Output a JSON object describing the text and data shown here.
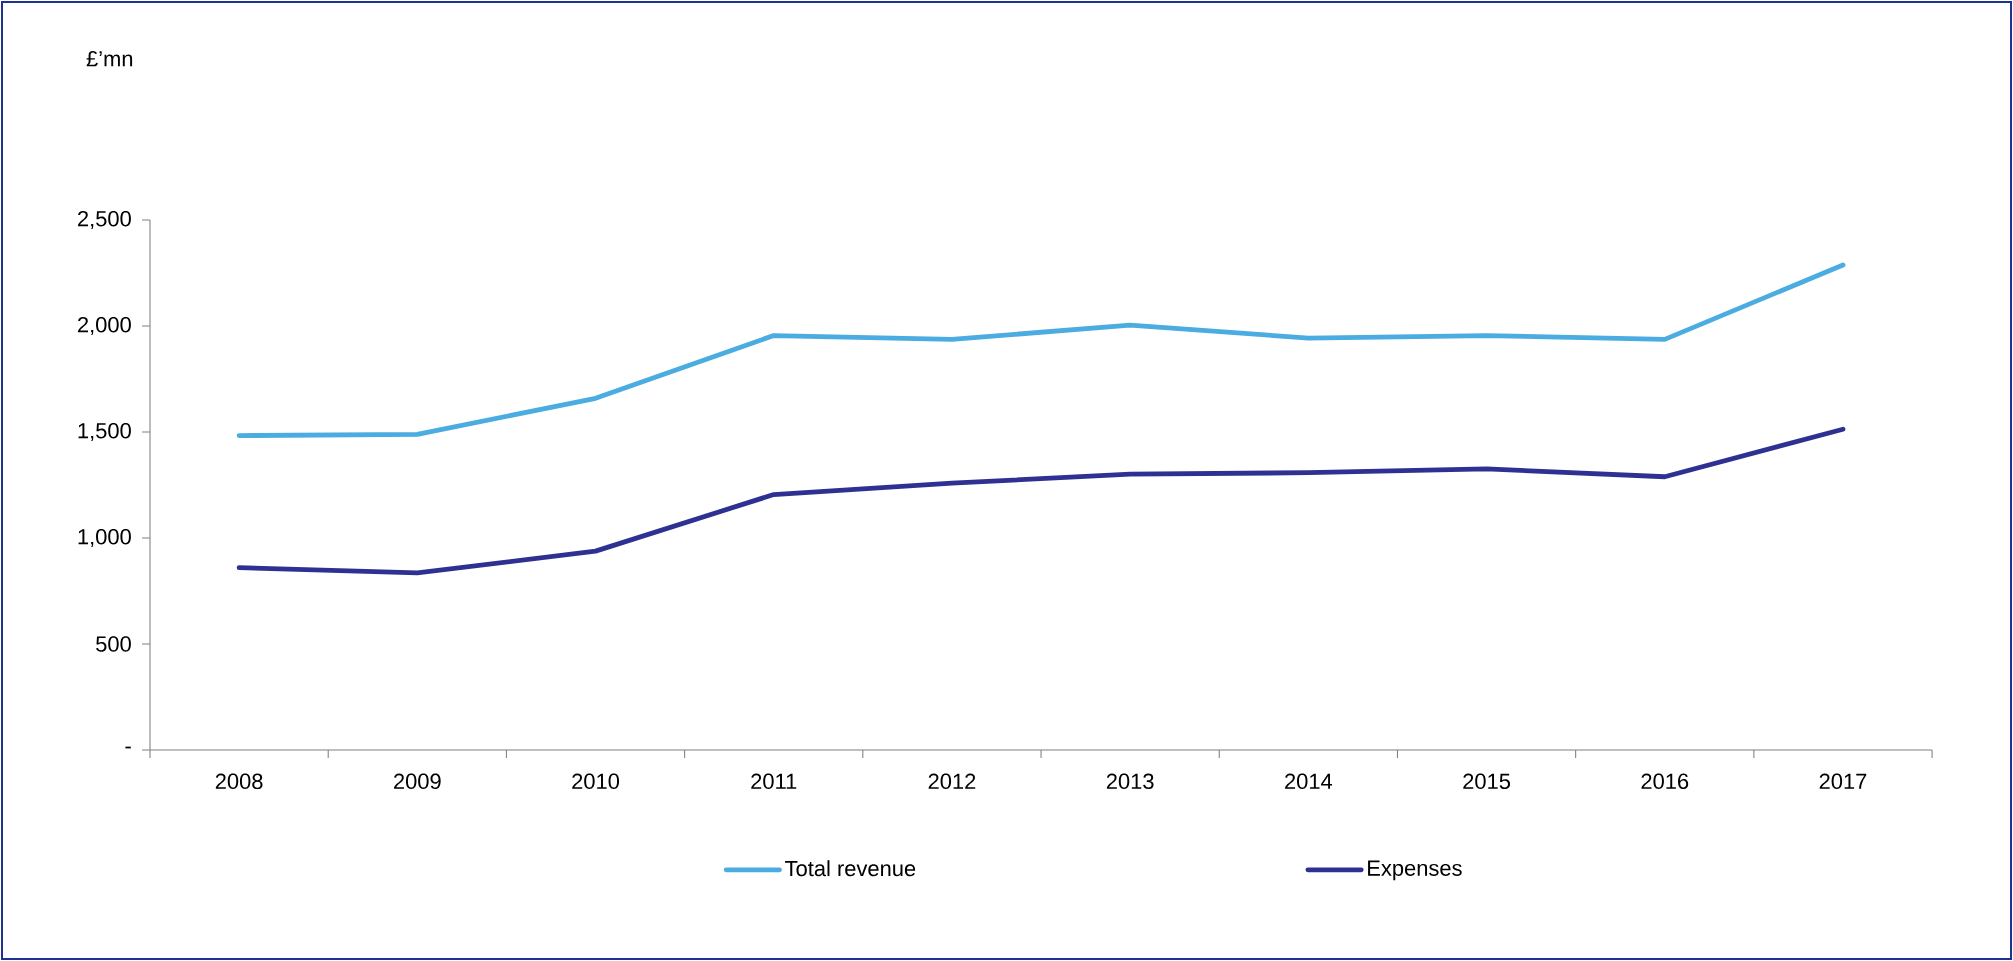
{
  "chart_data": {
    "type": "line",
    "annotations": [
      "£’mn"
    ],
    "categories": [
      "2008",
      "2009",
      "2010",
      "2011",
      "2012",
      "2013",
      "2014",
      "2015",
      "2016",
      "2017"
    ],
    "series": [
      {
        "name": "Total revenue",
        "color": "#4aace0",
        "values": [
          1483,
          1489,
          1659,
          1955,
          1937,
          2004,
          1943,
          1955,
          1937,
          2288
        ]
      },
      {
        "name": "Expenses",
        "color": "#2e3192",
        "values": [
          860,
          835,
          938,
          1205,
          1259,
          1301,
          1308,
          1326,
          1289,
          1513
        ]
      }
    ],
    "ylim": [
      0,
      2500
    ],
    "yticks": [
      {
        "value": 0,
        "label": "-"
      },
      500,
      {
        "value": 1000,
        "label": "1,000"
      },
      {
        "value": 1500,
        "label": "1,500"
      },
      {
        "value": 2000,
        "label": "2,000"
      },
      {
        "value": 2500,
        "label": "2,500"
      }
    ],
    "legend": "bottom"
  }
}
